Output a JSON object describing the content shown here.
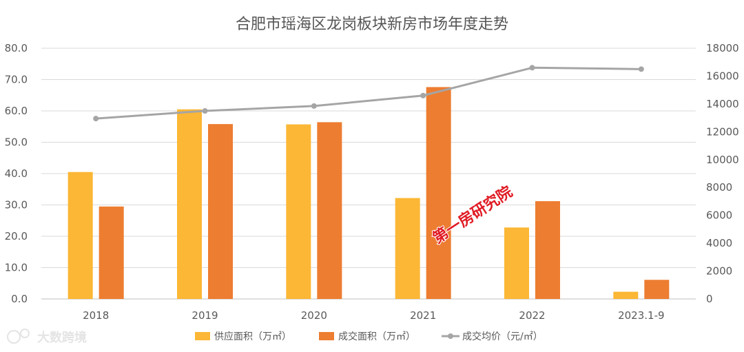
{
  "chart_data": {
    "type": "bar",
    "title": "合肥市瑶海区龙岗板块新房市场年度走势",
    "categories": [
      "2018",
      "2019",
      "2020",
      "2021",
      "2022",
      "2023.1-9"
    ],
    "series": [
      {
        "name": "供应面积（万㎡）",
        "type": "bar",
        "axis": "left",
        "color": "#FBB735",
        "values": [
          40.5,
          60.5,
          55.7,
          32.2,
          22.8,
          2.3
        ]
      },
      {
        "name": "成交面积（万㎡）",
        "type": "bar",
        "axis": "left",
        "color": "#ED7D31",
        "values": [
          29.5,
          55.8,
          56.4,
          67.6,
          31.2,
          6.1
        ]
      },
      {
        "name": "成交均价（元/㎡）",
        "type": "line",
        "axis": "right",
        "color": "#A5A5A5",
        "values": [
          12950,
          13500,
          13850,
          14600,
          16600,
          16500
        ]
      }
    ],
    "left_axis": {
      "min": 0,
      "max": 80,
      "ticks": [
        "0.0",
        "10.0",
        "20.0",
        "30.0",
        "40.0",
        "50.0",
        "60.0",
        "70.0",
        "80.0"
      ]
    },
    "right_axis": {
      "min": 0,
      "max": 18000,
      "ticks": [
        "0",
        "2000",
        "4000",
        "6000",
        "8000",
        "10000",
        "12000",
        "14000",
        "16000",
        "18000"
      ]
    },
    "grid": true,
    "legend_position": "bottom"
  },
  "watermark": "第一房研究院",
  "brand": "大数跨境"
}
